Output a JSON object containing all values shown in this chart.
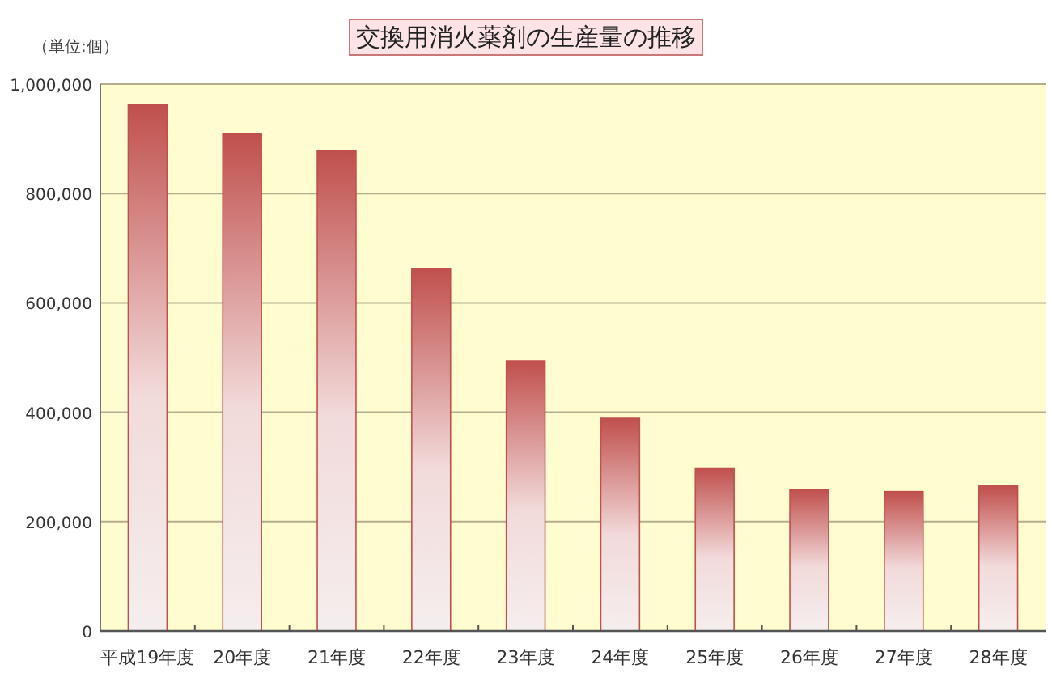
{
  "chart_data": {
    "type": "bar",
    "title": "交換用消火薬剤の生産量の推移",
    "annotations": [
      "（単位:個）"
    ],
    "categories": [
      "平成19年度",
      "20年度",
      "21年度",
      "22年度",
      "23年度",
      "24年度",
      "25年度",
      "26年度",
      "27年度",
      "28年度"
    ],
    "values": [
      962000,
      909000,
      878000,
      663000,
      494000,
      389000,
      298000,
      259000,
      255000,
      265000
    ],
    "color": "#c0504d",
    "ylim": [
      0,
      1000000
    ],
    "yticks": [
      0,
      {
        "value": 200000,
        "label": "200,000"
      },
      {
        "value": 400000,
        "label": "400,000"
      },
      {
        "value": 600000,
        "label": "600,000"
      },
      {
        "value": 800000,
        "label": "800,000"
      },
      {
        "value": 1000000,
        "label": "1,000,000"
      }
    ],
    "grid": "y"
  }
}
